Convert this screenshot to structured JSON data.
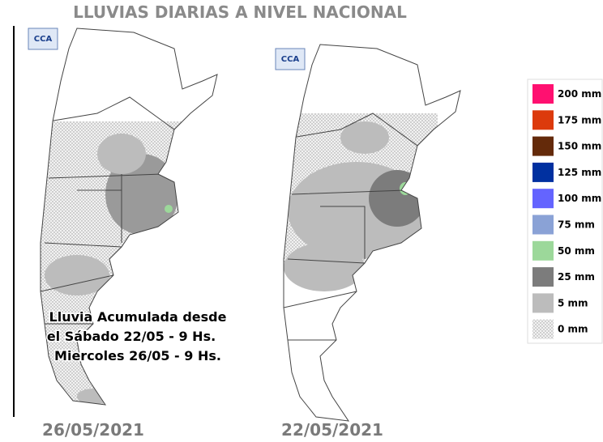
{
  "title": "LLUVIAS DIARIAS A NIVEL NACIONAL",
  "maps": [
    {
      "date": "26/05/2021",
      "logo": "CCA",
      "annotation": [
        "Lluvia Acumulada desde",
        "el Sábado 22/05 - 9 Hs.",
        "Miercoles 26/05 - 9 Hs."
      ]
    },
    {
      "date": "22/05/2021",
      "logo": "CCA"
    }
  ],
  "legend": [
    {
      "label": "200 mm",
      "color": "#ff1070"
    },
    {
      "label": "175 mm",
      "color": "#dc3a0c"
    },
    {
      "label": "150 mm",
      "color": "#642a0a"
    },
    {
      "label": "125 mm",
      "color": "#0030a0"
    },
    {
      "label": "100 mm",
      "color": "#6464ff"
    },
    {
      "label": "75 mm",
      "color": "#8aa2d6"
    },
    {
      "label": "50 mm",
      "color": "#9cd89a"
    },
    {
      "label": "25 mm",
      "color": "#7c7c7c"
    },
    {
      "label": "5 mm",
      "color": "#bcbcbc"
    },
    {
      "label": "0 mm"
    }
  ]
}
